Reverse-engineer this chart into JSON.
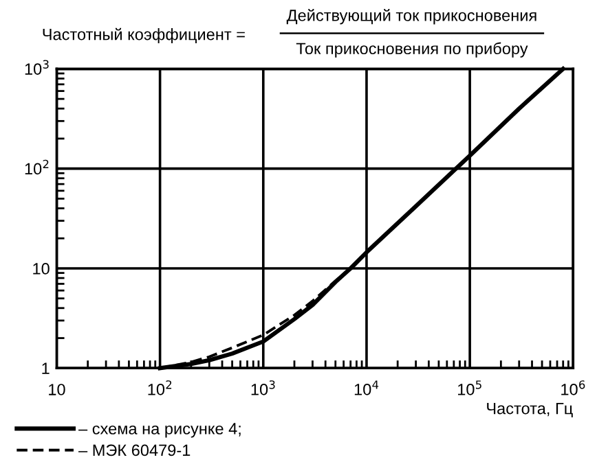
{
  "chart_data": {
    "type": "line",
    "title": "Частотный коэффициент =",
    "annotations": [
      "Действующий ток прикосновения",
      "Ток прикосновения по прибору"
    ],
    "xlabel": "Частота, Гц",
    "log": "xy",
    "xlim": [
      10,
      1000000
    ],
    "ylim": [
      1,
      1000
    ],
    "xticks": [
      10,
      {
        "value": 100,
        "label": "10$^{2}$"
      },
      {
        "value": 1000,
        "label": "10$^{3}$"
      },
      {
        "value": 10000,
        "label": "10$^{4}$"
      },
      {
        "value": 100000,
        "label": "10$^{5}$"
      },
      {
        "value": 1000000,
        "label": "10$^{6}$"
      }
    ],
    "yticks": [
      1,
      10,
      {
        "value": 100,
        "label": "10$^{2}$"
      },
      {
        "value": 1000,
        "label": "10$^{3}$"
      }
    ],
    "grid": true,
    "legend": "bottom left",
    "marker": "none",
    "series": [
      {
        "name": "– схема на рисунке 4;",
        "color": "#000000",
        "line_style": "solid",
        "x": [
          100,
          200,
          300,
          500,
          1000,
          2000,
          3000,
          5000,
          7000,
          10000,
          30000,
          100000,
          300000,
          800000
        ],
        "values": [
          1,
          1.1,
          1.2,
          1.4,
          1.85,
          3.1,
          4.3,
          7.3,
          10,
          14.5,
          42,
          135,
          400,
          1000
        ]
      },
      {
        "name": "– МЭК 60479-1",
        "color": "#000000",
        "line_style": "dashed",
        "x": [
          100,
          200,
          300,
          500,
          1000,
          2000,
          3000,
          5000,
          7000
        ],
        "values": [
          1,
          1.15,
          1.3,
          1.6,
          2.15,
          3.4,
          4.7,
          7.5,
          10
        ]
      }
    ]
  }
}
